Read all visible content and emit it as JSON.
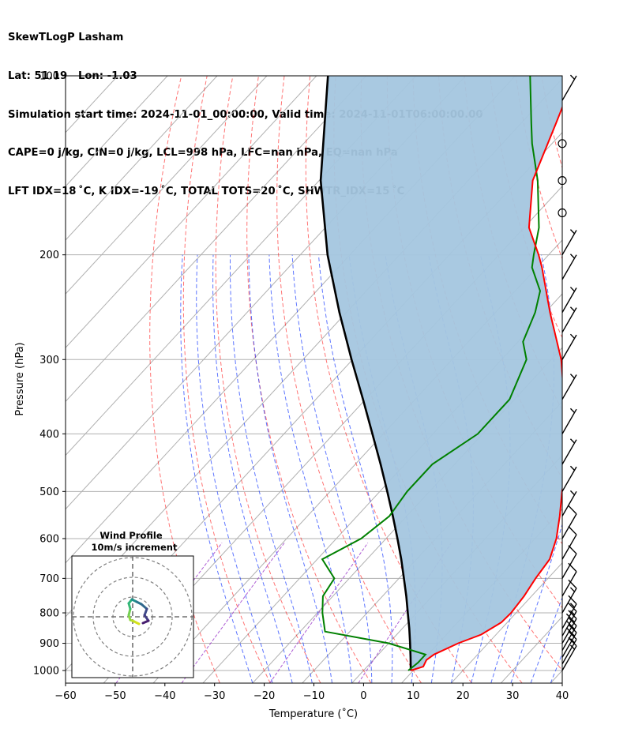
{
  "header": {
    "line1": "SkewTLogP Lasham",
    "line2": "Lat: 51.19   Lon: -1.03",
    "line3": "Simulation start time: 2024-11-01_00:00:00, Valid time: 2024-11-01T06:00:00.00",
    "line4": "CAPE=0 j/kg, CIN=0 j/kg, LCL=998 hPa, LFC=nan hPa, EQ=nan hPa",
    "line5": "LFT IDX=18 ˚C, K IDX=-19 ˚C, TOTAL TOTS=20 ˚C, SHWTR_IDX=15 ˚C"
  },
  "chart_data": {
    "type": "skew-t log-p",
    "xlabel": "Temperature (˚C)",
    "ylabel": "Pressure (hPa)",
    "xlim": [
      -60,
      40
    ],
    "ylim": [
      1050,
      100
    ],
    "y_scale": "log",
    "grid": true,
    "x_ticks": [
      "−60",
      "−50",
      "−40",
      "−30",
      "−20",
      "−10",
      "0",
      "10",
      "20",
      "30",
      "40"
    ],
    "y_ticks": [
      "100",
      "200",
      "300",
      "400",
      "500",
      "600",
      "700",
      "800",
      "900",
      "1000"
    ],
    "temperature": {
      "color": "#ff0000",
      "points": [
        [
          1000,
          9.5
        ],
        [
          985,
          11.3
        ],
        [
          960,
          10.7
        ],
        [
          940,
          11.2
        ],
        [
          900,
          14.0
        ],
        [
          870,
          17.0
        ],
        [
          830,
          18.8
        ],
        [
          800,
          19.0
        ],
        [
          750,
          18.5
        ],
        [
          700,
          17.5
        ],
        [
          650,
          16.8
        ],
        [
          600,
          14.3
        ],
        [
          550,
          10.8
        ],
        [
          500,
          6.7
        ],
        [
          450,
          2.5
        ],
        [
          400,
          -3.5
        ],
        [
          350,
          -10.0
        ],
        [
          300,
          -18.0
        ],
        [
          250,
          -29.0
        ],
        [
          210,
          -39.0
        ],
        [
          200,
          -42.0
        ],
        [
          180,
          -49.0
        ],
        [
          150,
          -57.0
        ],
        [
          120,
          -63.0
        ],
        [
          100,
          -68.0
        ]
      ]
    },
    "dewpoint": {
      "color": "#008000",
      "points": [
        [
          1000,
          9.0
        ],
        [
          970,
          9.5
        ],
        [
          940,
          9.5
        ],
        [
          900,
          0.0
        ],
        [
          860,
          -15.0
        ],
        [
          800,
          -19.0
        ],
        [
          750,
          -22.0
        ],
        [
          700,
          -23.0
        ],
        [
          650,
          -29.0
        ],
        [
          600,
          -25.0
        ],
        [
          550,
          -23.5
        ],
        [
          500,
          -24.5
        ],
        [
          450,
          -24.5
        ],
        [
          400,
          -21.0
        ],
        [
          350,
          -21.0
        ],
        [
          300,
          -25.0
        ],
        [
          280,
          -29.0
        ],
        [
          250,
          -32.0
        ],
        [
          230,
          -35.0
        ],
        [
          210,
          -41.0
        ],
        [
          200,
          -43.0
        ],
        [
          180,
          -47.0
        ],
        [
          150,
          -56.0
        ],
        [
          130,
          -64.0
        ],
        [
          120,
          -68.0
        ],
        [
          100,
          -77.0
        ]
      ]
    },
    "parcel": {
      "color": "#000000",
      "points": [
        [
          1000,
          9.5
        ],
        [
          950,
          7.0
        ],
        [
          900,
          4.3
        ],
        [
          850,
          1.4
        ],
        [
          800,
          -1.8
        ],
        [
          750,
          -5.2
        ],
        [
          700,
          -9.0
        ],
        [
          650,
          -13.1
        ],
        [
          600,
          -17.7
        ],
        [
          550,
          -22.8
        ],
        [
          500,
          -28.5
        ],
        [
          450,
          -34.9
        ],
        [
          400,
          -42.2
        ],
        [
          350,
          -50.5
        ],
        [
          300,
          -60.2
        ],
        [
          250,
          -71.4
        ],
        [
          200,
          -84.5
        ],
        [
          150,
          -99.7
        ],
        [
          100,
          -117.7
        ]
      ]
    },
    "shading": {
      "description": "region between temperature and parcel profiles",
      "color": "#a4c6df"
    },
    "wind_barbs": [
      {
        "pressure": 1000,
        "speed_kt": 15
      },
      {
        "pressure": 975,
        "speed_kt": 15
      },
      {
        "pressure": 950,
        "speed_kt": 20
      },
      {
        "pressure": 925,
        "speed_kt": 20
      },
      {
        "pressure": 900,
        "speed_kt": 20
      },
      {
        "pressure": 875,
        "speed_kt": 15
      },
      {
        "pressure": 850,
        "speed_kt": 15
      },
      {
        "pressure": 800,
        "speed_kt": 15
      },
      {
        "pressure": 750,
        "speed_kt": 10
      },
      {
        "pressure": 700,
        "speed_kt": 10
      },
      {
        "pressure": 650,
        "speed_kt": 10
      },
      {
        "pressure": 600,
        "speed_kt": 10
      },
      {
        "pressure": 550,
        "speed_kt": 5
      },
      {
        "pressure": 500,
        "speed_kt": 5
      },
      {
        "pressure": 450,
        "speed_kt": 5
      },
      {
        "pressure": 400,
        "speed_kt": 5
      },
      {
        "pressure": 350,
        "speed_kt": 5
      },
      {
        "pressure": 300,
        "speed_kt": 5
      },
      {
        "pressure": 270,
        "speed_kt": 5
      },
      {
        "pressure": 250,
        "speed_kt": 5
      },
      {
        "pressure": 220,
        "speed_kt": 5
      },
      {
        "pressure": 200,
        "speed_kt": 5
      },
      {
        "pressure": 170,
        "speed_kt": 0
      },
      {
        "pressure": 150,
        "speed_kt": 0
      },
      {
        "pressure": 130,
        "speed_kt": 0
      },
      {
        "pressure": 110,
        "speed_kt": 5
      }
    ],
    "inset": {
      "title": "Wind Profile",
      "subtitle": "10m/s increment",
      "rings": [
        1,
        2,
        3
      ]
    }
  }
}
